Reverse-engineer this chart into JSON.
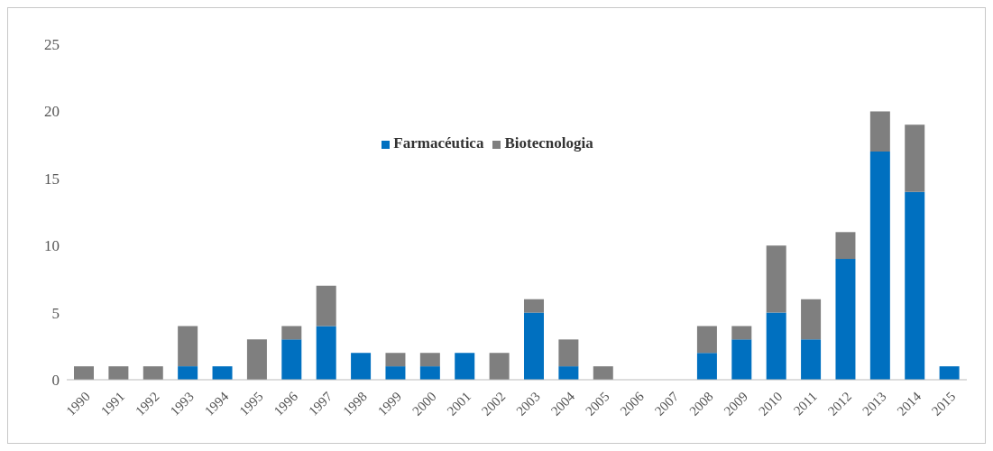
{
  "chart_data": {
    "type": "bar",
    "stacked": true,
    "categories": [
      "1990",
      "1991",
      "1992",
      "1993",
      "1994",
      "1995",
      "1996",
      "1997",
      "1998",
      "1999",
      "2000",
      "2001",
      "2002",
      "2003",
      "2004",
      "2005",
      "2006",
      "2007",
      "2008",
      "2009",
      "2010",
      "2011",
      "2012",
      "2013",
      "2014",
      "2015"
    ],
    "series": [
      {
        "name": "Farmacéutica",
        "color": "#0070c0",
        "values": [
          0,
          0,
          0,
          1,
          1,
          0,
          3,
          4,
          2,
          1,
          1,
          2,
          0,
          5,
          1,
          0,
          0,
          0,
          2,
          3,
          5,
          3,
          9,
          17,
          14,
          1
        ]
      },
      {
        "name": "Biotecnologia",
        "color": "#7f7f7f",
        "values": [
          1,
          1,
          1,
          3,
          0,
          3,
          1,
          3,
          0,
          1,
          1,
          0,
          2,
          1,
          2,
          1,
          0,
          0,
          2,
          1,
          5,
          3,
          2,
          3,
          5,
          0
        ]
      }
    ],
    "ylim": [
      0,
      25
    ],
    "yticks": [
      0,
      5,
      10,
      15,
      20,
      25
    ],
    "grid": false,
    "legend": "top"
  }
}
